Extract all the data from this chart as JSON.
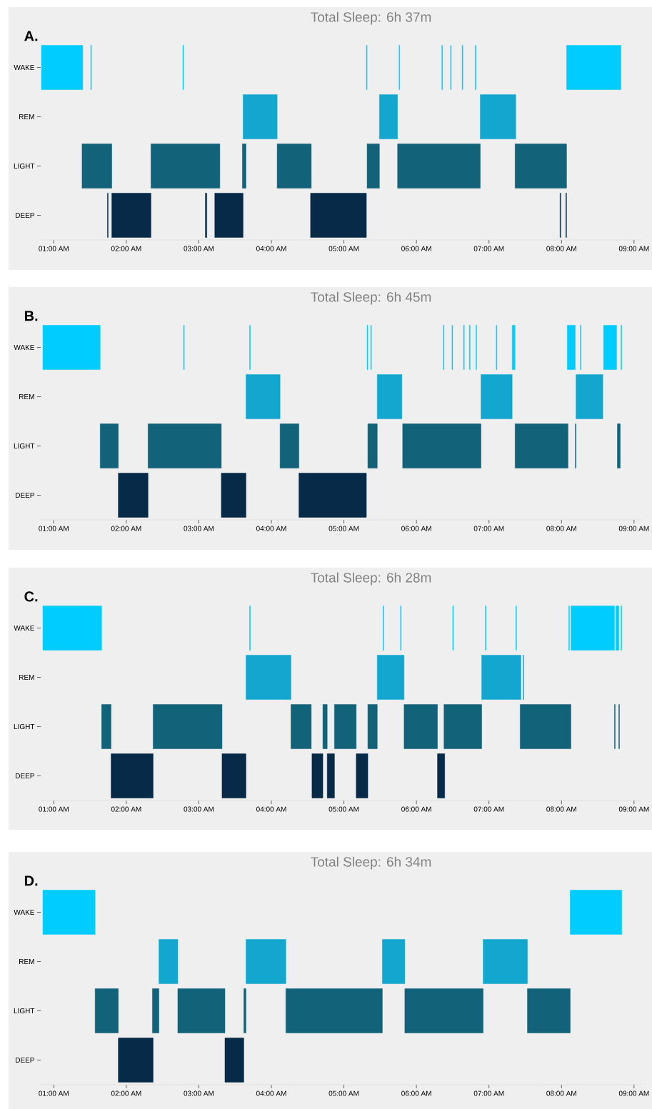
{
  "chart_data": [
    {
      "type": "bar",
      "orientation": "horizontal",
      "title": "Total Sleep: 6h 37m",
      "annotations": [
        "A."
      ],
      "categories": [
        "WAKE",
        "REM",
        "LIGHT",
        "DEEP"
      ],
      "xlim": [
        0.82,
        9.1
      ],
      "xticks": [
        {
          "value": 1,
          "label": "01:00 AM"
        },
        {
          "value": 2,
          "label": "02:00 AM"
        },
        {
          "value": 3,
          "label": "03:00 AM"
        },
        {
          "value": 4,
          "label": "04:00 AM"
        },
        {
          "value": 5,
          "label": "05:00 AM"
        },
        {
          "value": 6,
          "label": "06:00 AM"
        },
        {
          "value": 7,
          "label": "07:00 AM"
        },
        {
          "value": 8,
          "label": "08:00 AM"
        },
        {
          "value": 9,
          "label": "09:00 AM"
        }
      ],
      "series": [
        {
          "colors": [
            "#00ccff",
            "#13a6cf",
            "#12627a",
            "#062a48"
          ],
          "base": [
            0.83,
            3.61,
            1.39,
            1.74
          ],
          "values": [
            0.57,
            0.47,
            0.41,
            0.01
          ]
        },
        {
          "colors": [
            "#00ccff",
            "#13a6cf",
            "#12627a",
            "#062a48"
          ],
          "base": [
            1.51,
            5.49,
            2.34,
            1.8
          ],
          "values": [
            0.01,
            0.25,
            0.95,
            0.54
          ]
        },
        {
          "colors": [
            "#00ccff",
            "#13a6cf",
            "#12627a",
            "#062a48"
          ],
          "base": [
            2.78,
            6.88,
            3.6,
            3.09
          ],
          "values": [
            0.01,
            0.49,
            0.05,
            0.02
          ]
        },
        {
          "colors": [
            "#00ccff",
            null,
            "#12627a",
            "#062a48"
          ],
          "base": [
            5.31,
            null,
            4.08,
            3.22
          ],
          "values": [
            0.01,
            null,
            0.47,
            0.39
          ]
        },
        {
          "colors": [
            "#00ccff",
            null,
            "#12627a",
            "#062a48"
          ],
          "base": [
            5.76,
            null,
            5.32,
            4.54
          ],
          "values": [
            0.01,
            null,
            0.17,
            0.77
          ]
        },
        {
          "colors": [
            "#00ccff",
            null,
            "#12627a",
            "#062a48"
          ],
          "base": [
            6.35,
            null,
            5.74,
            7.98
          ],
          "values": [
            0.01,
            null,
            1.14,
            0.01
          ]
        },
        {
          "colors": [
            "#00ccff",
            null,
            "#12627a",
            "#062a48"
          ],
          "base": [
            6.47,
            null,
            7.36,
            8.06
          ],
          "values": [
            0.01,
            null,
            0.71,
            0.01
          ]
        },
        {
          "color": "#00ccff",
          "base": [
            6.63,
            null,
            null,
            null
          ],
          "values": [
            0.01,
            null,
            null,
            null
          ]
        },
        {
          "color": "#00ccff",
          "base": [
            6.81,
            null,
            null,
            null
          ],
          "values": [
            0.01,
            null,
            null,
            null
          ]
        },
        {
          "color": "#00ccff",
          "base": [
            8.07,
            null,
            null,
            null
          ],
          "values": [
            0.75,
            null,
            null,
            null
          ]
        }
      ]
    },
    {
      "type": "bar",
      "orientation": "horizontal",
      "title": "Total Sleep: 6h 45m",
      "annotations": [
        "B."
      ],
      "categories": [
        "WAKE",
        "REM",
        "LIGHT",
        "DEEP"
      ],
      "xlim": [
        0.82,
        9.1
      ],
      "xticks": [
        {
          "value": 1,
          "label": "01:00 AM"
        },
        {
          "value": 2,
          "label": "02:00 AM"
        },
        {
          "value": 3,
          "label": "03:00 AM"
        },
        {
          "value": 4,
          "label": "04:00 AM"
        },
        {
          "value": 5,
          "label": "05:00 AM"
        },
        {
          "value": 6,
          "label": "06:00 AM"
        },
        {
          "value": 7,
          "label": "07:00 AM"
        },
        {
          "value": 8,
          "label": "08:00 AM"
        },
        {
          "value": 9,
          "label": "09:00 AM"
        }
      ],
      "series": [
        {
          "colors": [
            "#00ccff",
            "#13a6cf",
            "#12627a",
            "#062a48"
          ],
          "base": [
            0.85,
            3.65,
            1.64,
            1.89
          ],
          "values": [
            0.79,
            0.47,
            0.25,
            0.41
          ]
        },
        {
          "colors": [
            "#00ccff",
            "#13a6cf",
            "#12627a",
            "#062a48"
          ],
          "base": [
            2.79,
            5.46,
            2.3,
            3.31
          ],
          "values": [
            0.01,
            0.34,
            1.01,
            0.34
          ]
        },
        {
          "colors": [
            "#00ccff",
            "#13a6cf",
            "#12627a",
            "#062a48"
          ],
          "base": [
            3.7,
            6.89,
            4.12,
            4.38
          ],
          "values": [
            0.01,
            0.43,
            0.26,
            0.93
          ]
        },
        {
          "colors": [
            "#00ccff",
            "#13a6cf",
            "#12627a",
            null
          ],
          "base": [
            5.32,
            8.2,
            5.33,
            null
          ],
          "values": [
            0.01,
            0.37,
            0.13,
            null
          ]
        },
        {
          "colors": [
            "#00ccff",
            null,
            "#12627a",
            null
          ],
          "base": [
            5.37,
            null,
            5.81,
            null
          ],
          "values": [
            0.01,
            null,
            1.08,
            null
          ]
        },
        {
          "colors": [
            "#00ccff",
            null,
            "#12627a",
            null
          ],
          "base": [
            6.37,
            null,
            7.36,
            null
          ],
          "values": [
            0.01,
            null,
            0.73,
            null
          ]
        },
        {
          "colors": [
            "#00ccff",
            null,
            "#12627a",
            null
          ],
          "base": [
            6.49,
            null,
            8.19,
            null
          ],
          "values": [
            0.01,
            null,
            0.01,
            null
          ]
        },
        {
          "colors": [
            "#00ccff",
            null,
            "#12627a",
            null
          ],
          "base": [
            6.65,
            null,
            8.77,
            null
          ],
          "values": [
            0.01,
            null,
            0.04,
            null
          ]
        },
        {
          "color": "#00ccff",
          "base": [
            6.73,
            null,
            null,
            null
          ],
          "values": [
            0.01,
            null,
            null,
            null
          ]
        },
        {
          "color": "#00ccff",
          "base": [
            6.82,
            null,
            null,
            null
          ],
          "values": [
            0.01,
            null,
            null,
            null
          ]
        },
        {
          "color": "#00ccff",
          "base": [
            7.1,
            null,
            null,
            null
          ],
          "values": [
            0.01,
            null,
            null,
            null
          ]
        },
        {
          "color": "#00ccff",
          "base": [
            7.32,
            null,
            null,
            null
          ],
          "values": [
            0.04,
            null,
            null,
            null
          ]
        },
        {
          "color": "#00ccff",
          "base": [
            8.08,
            null,
            null,
            null
          ],
          "values": [
            0.11,
            null,
            null,
            null
          ]
        },
        {
          "color": "#00ccff",
          "base": [
            8.26,
            null,
            null,
            null
          ],
          "values": [
            0.01,
            null,
            null,
            null
          ]
        },
        {
          "color": "#00ccff",
          "base": [
            8.58,
            null,
            null,
            null
          ],
          "values": [
            0.18,
            null,
            null,
            null
          ]
        },
        {
          "color": "#00ccff",
          "base": [
            8.82,
            null,
            null,
            null
          ],
          "values": [
            0.01,
            null,
            null,
            null
          ]
        }
      ]
    },
    {
      "type": "bar",
      "orientation": "horizontal",
      "title": "Total Sleep: 6h 28m",
      "annotations": [
        "C."
      ],
      "categories": [
        "WAKE",
        "REM",
        "LIGHT",
        "DEEP"
      ],
      "xlim": [
        0.82,
        9.1
      ],
      "xticks": [
        {
          "value": 1,
          "label": "01:00 AM"
        },
        {
          "value": 2,
          "label": "02:00 AM"
        },
        {
          "value": 3,
          "label": "03:00 AM"
        },
        {
          "value": 4,
          "label": "04:00 AM"
        },
        {
          "value": 5,
          "label": "05:00 AM"
        },
        {
          "value": 6,
          "label": "06:00 AM"
        },
        {
          "value": 7,
          "label": "07:00 AM"
        },
        {
          "value": 8,
          "label": "08:00 AM"
        },
        {
          "value": 9,
          "label": "09:00 AM"
        }
      ],
      "series": [
        {
          "colors": [
            "#00ccff",
            "#13a6cf",
            "#12627a",
            "#062a48"
          ],
          "base": [
            0.85,
            3.65,
            1.66,
            1.79
          ],
          "values": [
            0.81,
            0.62,
            0.13,
            0.58
          ]
        },
        {
          "colors": [
            "#00ccff",
            "#13a6cf",
            "#12627a",
            "#062a48"
          ],
          "base": [
            3.7,
            5.46,
            2.37,
            3.32
          ],
          "values": [
            0.01,
            0.37,
            0.95,
            0.33
          ]
        },
        {
          "colors": [
            "#00ccff",
            "#13a6cf",
            "#12627a",
            "#062a48"
          ],
          "base": [
            5.54,
            6.9,
            4.27,
            4.56
          ],
          "values": [
            0.01,
            0.54,
            0.28,
            0.15
          ]
        },
        {
          "colors": [
            "#00ccff",
            "#13a6cf",
            "#12627a",
            "#062a48"
          ],
          "base": [
            5.78,
            7.47,
            4.71,
            4.77
          ],
          "values": [
            0.01,
            0.01,
            0.06,
            0.1
          ]
        },
        {
          "colors": [
            "#00ccff",
            null,
            "#12627a",
            "#062a48"
          ],
          "base": [
            6.5,
            null,
            4.87,
            5.17
          ],
          "values": [
            0.01,
            null,
            0.3,
            0.16
          ]
        },
        {
          "colors": [
            "#00ccff",
            null,
            "#12627a",
            "#062a48"
          ],
          "base": [
            6.95,
            null,
            5.33,
            6.29
          ],
          "values": [
            0.01,
            null,
            0.13,
            0.1
          ]
        },
        {
          "colors": [
            "#00ccff",
            null,
            "#12627a",
            null
          ],
          "base": [
            7.37,
            null,
            5.83,
            null
          ],
          "values": [
            0.01,
            null,
            0.46,
            null
          ]
        },
        {
          "colors": [
            "#00ccff",
            null,
            "#12627a",
            null
          ],
          "base": [
            8.1,
            null,
            6.38,
            null
          ],
          "values": [
            0.01,
            null,
            0.52,
            null
          ]
        },
        {
          "colors": [
            "#00ccff",
            null,
            "#12627a",
            null
          ],
          "base": [
            8.13,
            null,
            7.43,
            null
          ],
          "values": [
            0.6,
            null,
            0.7,
            null
          ]
        },
        {
          "colors": [
            "#00ccff",
            null,
            "#12627a",
            null
          ],
          "base": [
            8.75,
            null,
            8.73,
            null
          ],
          "values": [
            0.04,
            null,
            0.01,
            null
          ]
        },
        {
          "colors": [
            "#00ccff",
            null,
            "#12627a",
            null
          ],
          "base": [
            8.82,
            null,
            8.79,
            null
          ],
          "values": [
            0.01,
            null,
            0.01,
            null
          ]
        }
      ]
    },
    {
      "type": "bar",
      "orientation": "horizontal",
      "title": "Total Sleep: 6h 34m",
      "annotations": [
        "D."
      ],
      "categories": [
        "WAKE",
        "REM",
        "LIGHT",
        "DEEP"
      ],
      "xlim": [
        0.82,
        9.1
      ],
      "xticks": [
        {
          "value": 1,
          "label": "01:00 AM"
        },
        {
          "value": 2,
          "label": "02:00 AM"
        },
        {
          "value": 3,
          "label": "03:00 AM"
        },
        {
          "value": 4,
          "label": "04:00 AM"
        },
        {
          "value": 5,
          "label": "05:00 AM"
        },
        {
          "value": 6,
          "label": "06:00 AM"
        },
        {
          "value": 7,
          "label": "07:00 AM"
        },
        {
          "value": 8,
          "label": "08:00 AM"
        },
        {
          "value": 9,
          "label": "09:00 AM"
        }
      ],
      "series": [
        {
          "colors": [
            "#00ccff",
            "#13a6cf",
            "#12627a",
            "#062a48"
          ],
          "base": [
            0.85,
            2.45,
            1.57,
            1.89
          ],
          "values": [
            0.72,
            0.26,
            0.32,
            0.48
          ]
        },
        {
          "colors": [
            "#00ccff",
            "#13a6cf",
            "#12627a",
            "#062a48"
          ],
          "base": [
            8.12,
            3.65,
            2.36,
            3.36
          ],
          "values": [
            0.71,
            0.55,
            0.09,
            0.26
          ]
        },
        {
          "colors": [
            null,
            "#13a6cf",
            "#12627a",
            null
          ],
          "base": [
            null,
            5.53,
            2.71,
            null
          ],
          "values": [
            null,
            0.31,
            0.65,
            null
          ]
        },
        {
          "colors": [
            null,
            "#13a6cf",
            "#12627a",
            null
          ],
          "base": [
            null,
            6.92,
            3.62,
            null
          ],
          "values": [
            null,
            0.61,
            0.03,
            null
          ]
        },
        {
          "color": "#12627a",
          "base": [
            null,
            null,
            4.2,
            null
          ],
          "values": [
            null,
            null,
            1.33,
            null
          ]
        },
        {
          "color": "#12627a",
          "base": [
            null,
            null,
            5.84,
            null
          ],
          "values": [
            null,
            null,
            1.08,
            null
          ]
        },
        {
          "color": "#12627a",
          "base": [
            null,
            null,
            7.53,
            null
          ],
          "values": [
            null,
            null,
            0.59,
            null
          ]
        }
      ]
    }
  ]
}
